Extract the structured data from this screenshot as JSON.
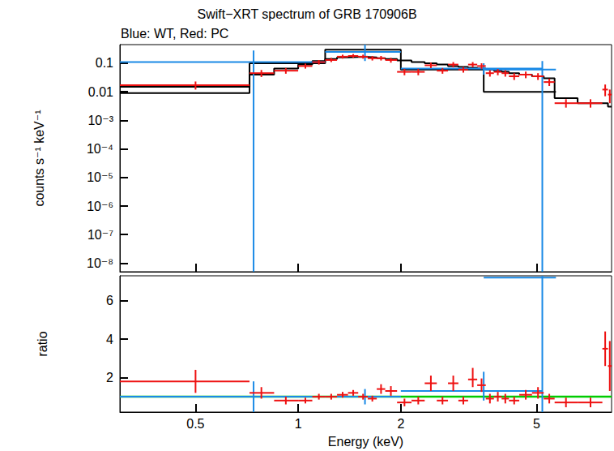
{
  "chart_data": [
    {
      "type": "scatter",
      "title": "Swift−XRT spectrum of GRB 170906B",
      "subtitle": "Blue: WT, Red: PC",
      "y_label": "counts s⁻¹ keV⁻¹",
      "log": true,
      "tick_labels": "y",
      "xlim": [
        0.3,
        8.3
      ],
      "xticks": [
        0.5,
        1,
        2,
        5
      ],
      "ylim": [
        5e-09,
        0.45
      ],
      "yticks": [
        {
          "value": 1e-08,
          "label": "10⁻⁸"
        },
        {
          "value": 1e-07,
          "label": "10⁻⁷"
        },
        {
          "value": 1e-06,
          "label": "10⁻⁶"
        },
        {
          "value": 1e-05,
          "label": "10⁻⁵"
        },
        {
          "value": 0.0001,
          "label": "10⁻⁴"
        },
        {
          "value": 0.001,
          "label": "10⁻³"
        },
        0.01,
        0.1
      ],
      "series": [
        {
          "type": "line",
          "line_style": "step",
          "color": "#000000",
          "edges": [
            0.3,
            0.72,
            1.2,
            2.0,
            3.5,
            5.7
          ],
          "values": [
            0.009,
            0.1,
            0.3,
            0.06,
            0.01
          ]
        },
        {
          "type": "line",
          "line_style": "step",
          "color": "#000000",
          "edges": [
            0.3,
            0.72,
            0.85,
            1.0,
            1.1,
            1.2,
            1.3,
            1.4,
            1.5,
            1.6,
            1.7,
            1.8,
            1.95,
            2.15,
            2.35,
            2.55,
            2.75,
            2.95,
            3.15,
            3.35,
            3.55,
            3.75,
            3.95,
            4.15,
            4.45,
            4.85,
            5.25,
            5.65,
            6.6,
            7.8,
            8.1,
            8.3
          ],
          "values": [
            0.015,
            0.04,
            0.065,
            0.09,
            0.12,
            0.14,
            0.16,
            0.165,
            0.165,
            0.16,
            0.15,
            0.14,
            0.125,
            0.11,
            0.1,
            0.09,
            0.08,
            0.075,
            0.07,
            0.065,
            0.06,
            0.055,
            0.05,
            0.045,
            0.04,
            0.035,
            0.03,
            0.006,
            0.004,
            0.004,
            0.003
          ]
        },
        {
          "name": "WT",
          "type": "scatter",
          "color": "#1a8ae6",
          "x": [
            0.74,
            1.57,
            3.5,
            5.2
          ],
          "xlo": [
            0.3,
            1.2,
            2.0,
            3.5
          ],
          "xhi": [
            1.2,
            2.0,
            5.2,
            5.7
          ],
          "values": [
            0.11,
            0.25,
            0.065,
            0.06
          ],
          "ylo": [
            5e-09,
            0.12,
            0.04,
            5e-09
          ],
          "yhi": [
            0.28,
            0.45,
            0.1,
            0.12
          ]
        },
        {
          "name": "PC",
          "type": "scatter",
          "color": "#ee1111",
          "x": [
            0.5,
            0.78,
            0.92,
            1.05,
            1.15,
            1.25,
            1.35,
            1.45,
            1.55,
            1.65,
            1.75,
            1.87,
            2.05,
            2.25,
            2.45,
            2.65,
            2.85,
            3.05,
            3.25,
            3.45,
            3.65,
            3.85,
            4.05,
            4.3,
            4.65,
            5.05,
            5.45,
            6.1,
            7.2,
            7.95,
            8.2
          ],
          "xlo": [
            0.3,
            0.72,
            0.85,
            1.0,
            1.1,
            1.2,
            1.3,
            1.4,
            1.5,
            1.6,
            1.7,
            1.8,
            1.95,
            2.15,
            2.35,
            2.55,
            2.75,
            2.95,
            3.15,
            3.35,
            3.55,
            3.75,
            3.95,
            4.15,
            4.45,
            4.85,
            5.25,
            5.65,
            6.6,
            7.8,
            8.1
          ],
          "xhi": [
            0.72,
            0.85,
            1.0,
            1.1,
            1.2,
            1.3,
            1.4,
            1.5,
            1.6,
            1.7,
            1.8,
            1.95,
            2.15,
            2.35,
            2.55,
            2.75,
            2.95,
            3.15,
            3.35,
            3.55,
            3.75,
            3.95,
            4.15,
            4.45,
            4.85,
            5.25,
            5.65,
            6.6,
            7.8,
            8.1,
            8.3
          ],
          "values": [
            0.017,
            0.045,
            0.055,
            0.08,
            0.11,
            0.13,
            0.17,
            0.18,
            0.17,
            0.15,
            0.15,
            0.13,
            0.05,
            0.05,
            0.085,
            0.055,
            0.09,
            0.06,
            0.09,
            0.08,
            0.045,
            0.05,
            0.045,
            0.035,
            0.04,
            0.035,
            0.022,
            0.004,
            0.004,
            0.012,
            0.008
          ],
          "ylo": [
            0.012,
            0.033,
            0.043,
            0.065,
            0.09,
            0.11,
            0.145,
            0.155,
            0.145,
            0.125,
            0.125,
            0.105,
            0.038,
            0.038,
            0.068,
            0.043,
            0.072,
            0.047,
            0.072,
            0.064,
            0.034,
            0.038,
            0.034,
            0.026,
            0.03,
            0.026,
            0.016,
            0.0028,
            0.0028,
            0.007,
            0.004
          ],
          "yhi": [
            0.023,
            0.058,
            0.068,
            0.097,
            0.13,
            0.155,
            0.2,
            0.21,
            0.2,
            0.18,
            0.18,
            0.155,
            0.064,
            0.064,
            0.105,
            0.068,
            0.11,
            0.074,
            0.11,
            0.1,
            0.057,
            0.063,
            0.057,
            0.045,
            0.051,
            0.045,
            0.029,
            0.0055,
            0.0055,
            0.018,
            0.012
          ]
        }
      ]
    },
    {
      "type": "scatter",
      "y_label": "ratio",
      "x_label": "Energy (keV)",
      "log": "x",
      "xlim": [
        0.3,
        8.3
      ],
      "xticks": [
        0.5,
        1,
        2,
        5
      ],
      "ylim": [
        0.2,
        7.3
      ],
      "yticks": [
        2,
        4,
        6
      ],
      "reference_line": {
        "value": 1,
        "color": "#00cc00"
      },
      "series": [
        {
          "name": "WT",
          "type": "scatter",
          "color": "#1a8ae6",
          "x": [
            0.74,
            1.57,
            3.5,
            5.2
          ],
          "xlo": [
            0.3,
            1.2,
            2.0,
            3.5
          ],
          "xhi": [
            1.2,
            2.0,
            5.2,
            5.7
          ],
          "values": [
            1.0,
            1.0,
            1.3,
            7.2
          ],
          "ylo": [
            0.2,
            0.6,
            0.8,
            0.2
          ],
          "yhi": [
            1.8,
            1.4,
            2.3,
            7.3
          ]
        },
        {
          "name": "PC",
          "type": "scatter",
          "color": "#ee1111",
          "x": [
            0.5,
            0.78,
            0.92,
            1.05,
            1.15,
            1.25,
            1.35,
            1.45,
            1.55,
            1.65,
            1.75,
            1.87,
            2.05,
            2.25,
            2.45,
            2.65,
            2.85,
            3.05,
            3.25,
            3.45,
            3.65,
            3.85,
            4.05,
            4.3,
            4.65,
            5.05,
            5.45,
            6.1,
            7.2,
            7.95,
            8.2
          ],
          "xlo": [
            0.3,
            0.72,
            0.85,
            1.0,
            1.1,
            1.2,
            1.3,
            1.4,
            1.5,
            1.6,
            1.7,
            1.8,
            1.95,
            2.15,
            2.35,
            2.55,
            2.75,
            2.95,
            3.15,
            3.35,
            3.55,
            3.75,
            3.95,
            4.15,
            4.45,
            4.85,
            5.25,
            5.65,
            6.6,
            7.8,
            8.1
          ],
          "xhi": [
            0.72,
            0.85,
            1.0,
            1.1,
            1.2,
            1.3,
            1.4,
            1.5,
            1.6,
            1.7,
            1.8,
            1.95,
            2.15,
            2.35,
            2.55,
            2.75,
            2.95,
            3.15,
            3.35,
            3.55,
            3.75,
            3.95,
            4.15,
            4.45,
            4.85,
            5.25,
            5.65,
            6.6,
            7.8,
            8.1,
            8.3
          ],
          "values": [
            1.8,
            1.2,
            0.8,
            0.8,
            1.0,
            1.0,
            1.1,
            1.2,
            1.0,
            0.9,
            1.4,
            1.3,
            0.7,
            0.8,
            1.7,
            0.8,
            1.7,
            0.8,
            1.9,
            1.6,
            0.9,
            1.0,
            0.9,
            0.8,
            1.1,
            1.2,
            0.9,
            0.7,
            0.7,
            3.5,
            2.6
          ],
          "ylo": [
            1.2,
            0.9,
            0.6,
            0.65,
            0.85,
            0.85,
            0.95,
            1.05,
            0.85,
            0.75,
            1.15,
            1.05,
            0.5,
            0.6,
            1.3,
            0.6,
            1.3,
            0.6,
            1.5,
            1.25,
            0.65,
            0.75,
            0.65,
            0.6,
            0.85,
            0.9,
            0.65,
            0.45,
            0.45,
            2.6,
            1.3
          ],
          "yhi": [
            2.4,
            1.5,
            1.0,
            0.95,
            1.15,
            1.15,
            1.25,
            1.35,
            1.15,
            1.05,
            1.65,
            1.55,
            0.9,
            1.0,
            2.1,
            1.0,
            2.1,
            1.0,
            2.5,
            1.95,
            1.15,
            1.25,
            1.15,
            1.0,
            1.35,
            1.5,
            1.15,
            0.95,
            0.95,
            4.4,
            3.9
          ]
        }
      ]
    }
  ]
}
